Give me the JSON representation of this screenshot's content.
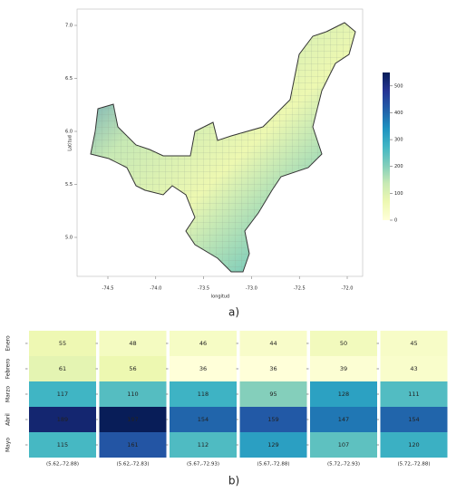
{
  "map": {
    "xlabel": "longitud",
    "ylabel": "Latitud",
    "xticks": [
      {
        "value": -74.5,
        "label": "-74.5"
      },
      {
        "value": -74,
        "label": "-74.0"
      },
      {
        "value": -73.5,
        "label": "-73.5"
      },
      {
        "value": -73,
        "label": "-73.0"
      },
      {
        "value": -72.5,
        "label": "-72.5"
      },
      {
        "value": -72,
        "label": "-72.0"
      }
    ],
    "yticks": [
      {
        "value": 7,
        "label": "7.0"
      },
      {
        "value": 6.5,
        "label": "6.5"
      },
      {
        "value": 6,
        "label": "6.0"
      },
      {
        "value": 5.5,
        "label": "5.5"
      },
      {
        "value": 5,
        "label": "5.0"
      }
    ],
    "colorbar": {
      "lim": [
        0,
        550
      ],
      "ticks": [
        0,
        100,
        200,
        300,
        400,
        500
      ]
    }
  },
  "caption_a": "a)",
  "heatmaps": {
    "rows": [
      "Enero",
      "Febrero",
      "Marzo",
      "Abril",
      "Mayo"
    ],
    "panels": [
      {
        "label": "(5.62,-72.88)",
        "values": [
          55,
          61,
          117,
          189,
          115
        ]
      },
      {
        "label": "(5.62,-72.83)",
        "values": [
          48,
          56,
          110,
          197,
          161
        ]
      },
      {
        "label": "(5.67,-72.93)",
        "values": [
          46,
          36,
          118,
          154,
          112
        ]
      },
      {
        "label": "(5.67,-72.88)",
        "values": [
          44,
          36,
          95,
          159,
          129
        ]
      },
      {
        "label": "(5.72,-72.93)",
        "values": [
          50,
          39,
          128,
          147,
          107
        ]
      },
      {
        "label": "(5.72,-72.88)",
        "values": [
          45,
          43,
          111,
          154,
          120
        ]
      }
    ]
  },
  "caption_b": "b)"
}
